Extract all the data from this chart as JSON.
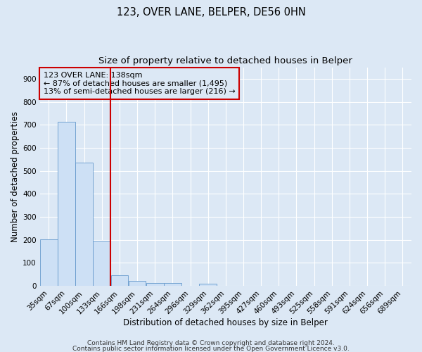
{
  "title_line1": "123, OVER LANE, BELPER, DE56 0HN",
  "title_line2": "Size of property relative to detached houses in Belper",
  "xlabel": "Distribution of detached houses by size in Belper",
  "ylabel": "Number of detached properties",
  "categories": [
    "35sqm",
    "67sqm",
    "100sqm",
    "133sqm",
    "166sqm",
    "198sqm",
    "231sqm",
    "264sqm",
    "296sqm",
    "329sqm",
    "362sqm",
    "395sqm",
    "427sqm",
    "460sqm",
    "493sqm",
    "525sqm",
    "558sqm",
    "591sqm",
    "624sqm",
    "656sqm",
    "689sqm"
  ],
  "values": [
    203,
    714,
    537,
    196,
    47,
    21,
    14,
    12,
    0,
    10,
    0,
    0,
    0,
    0,
    0,
    0,
    0,
    0,
    0,
    0,
    0
  ],
  "bar_color": "#cde0f5",
  "bar_edge_color": "#6699cc",
  "reference_line_color": "#cc0000",
  "annotation_box_text": "123 OVER LANE: 138sqm\n← 87% of detached houses are smaller (1,495)\n13% of semi-detached houses are larger (216) →",
  "ylim": [
    0,
    950
  ],
  "yticks": [
    0,
    100,
    200,
    300,
    400,
    500,
    600,
    700,
    800,
    900
  ],
  "footer_line1": "Contains HM Land Registry data © Crown copyright and database right 2024.",
  "footer_line2": "Contains public sector information licensed under the Open Government Licence v3.0.",
  "background_color": "#dce8f5",
  "grid_color": "#ffffff",
  "title_fontsize": 10.5,
  "subtitle_fontsize": 9.5,
  "axis_label_fontsize": 8.5,
  "tick_fontsize": 7.5,
  "annotation_fontsize": 8,
  "footer_fontsize": 6.5
}
